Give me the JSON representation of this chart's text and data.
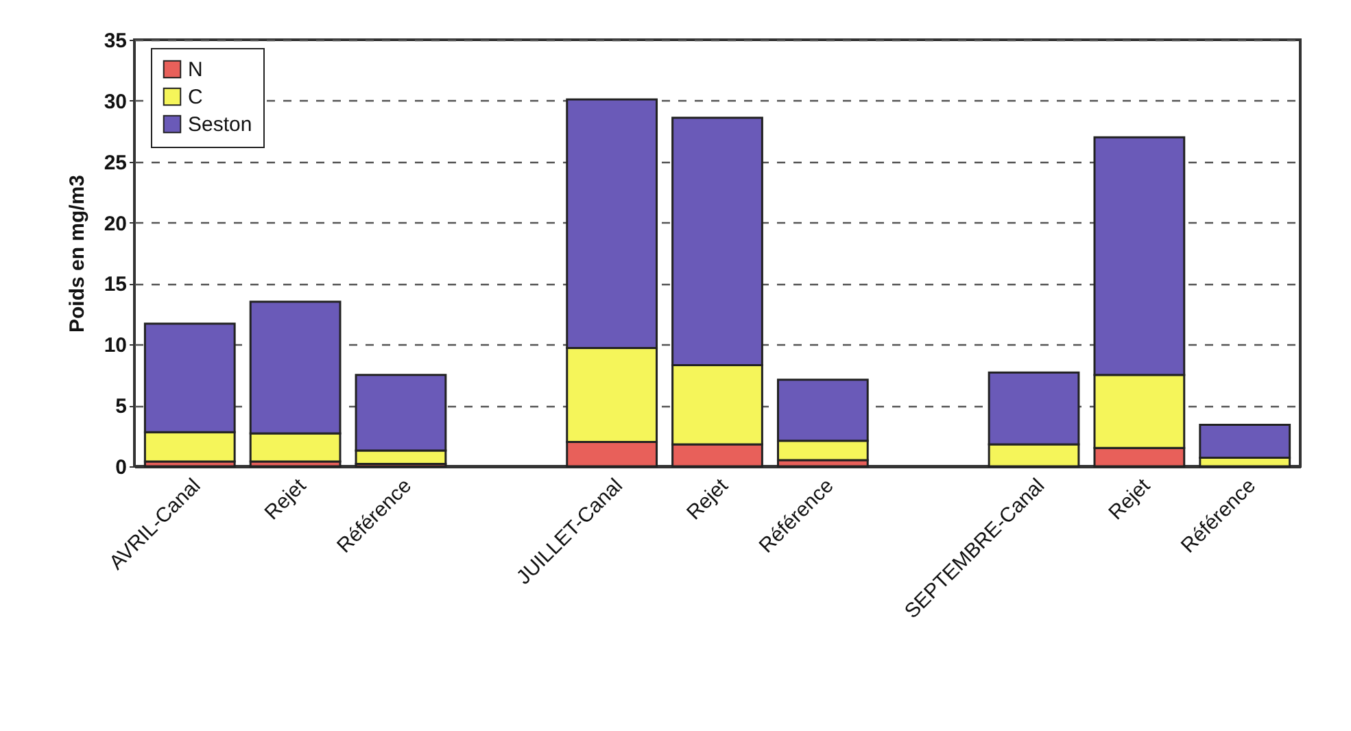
{
  "chart_data": {
    "type": "bar",
    "stacked": true,
    "ylabel": "Poids en mg/m3",
    "categories": [
      "AVRIL-Canal",
      "Rejet",
      "Référence",
      null,
      "JUILLET-Canal",
      "Rejet",
      "Référence",
      null,
      "SEPTEMBRE-Canal",
      "Rejet",
      "Référence"
    ],
    "series": [
      {
        "name": "N",
        "color": "#e8605a",
        "values": [
          0.4,
          0.4,
          0.2,
          null,
          2.0,
          1.8,
          0.5,
          null,
          null,
          1.5,
          null
        ]
      },
      {
        "name": "C",
        "color": "#f5f55a",
        "values": [
          2.4,
          2.3,
          1.1,
          null,
          7.7,
          6.5,
          1.6,
          null,
          1.8,
          6.0,
          0.7
        ]
      },
      {
        "name": "Seston",
        "color": "#6a5ab8",
        "values": [
          8.9,
          10.8,
          6.2,
          null,
          20.4,
          20.3,
          5.0,
          null,
          5.9,
          19.5,
          2.7
        ]
      }
    ],
    "ylim": [
      0,
      35
    ],
    "yticks": [
      0,
      5,
      10,
      15,
      20,
      25,
      30,
      35
    ],
    "grid": "y",
    "legend": "top left"
  }
}
